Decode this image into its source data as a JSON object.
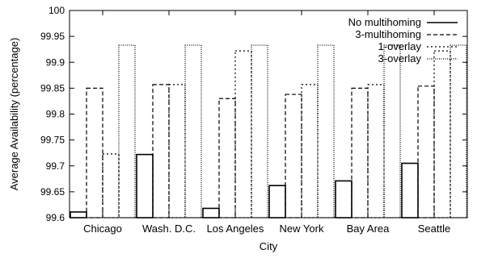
{
  "chart_data": {
    "type": "bar",
    "xlabel": "City",
    "ylabel": "Average Availability (percentage)",
    "ylim": [
      99.6,
      100
    ],
    "yticks": [
      "99.6",
      "99.65",
      "99.7",
      "99.75",
      "99.8",
      "99.85",
      "99.9",
      "99.95",
      "100"
    ],
    "categories": [
      "Chicago",
      "Wash. D.C.",
      "Los Angeles",
      "New York",
      "Bay Area",
      "Seattle"
    ],
    "legend_position": "top-right",
    "series": [
      {
        "name": "No multihoming",
        "style": "solid",
        "values": [
          99.611,
          99.722,
          99.618,
          99.662,
          99.671,
          99.705
        ]
      },
      {
        "name": "3-multihoming",
        "style": "dashed",
        "values": [
          99.85,
          99.857,
          99.83,
          99.838,
          99.85,
          99.854
        ]
      },
      {
        "name": "1-overlay",
        "style": "dotted",
        "values": [
          99.723,
          99.857,
          99.922,
          99.857,
          99.857,
          99.922
        ]
      },
      {
        "name": "3-overlay",
        "style": "dense-dotted",
        "values": [
          99.933,
          99.933,
          99.933,
          99.933,
          99.933,
          99.933
        ]
      }
    ]
  }
}
